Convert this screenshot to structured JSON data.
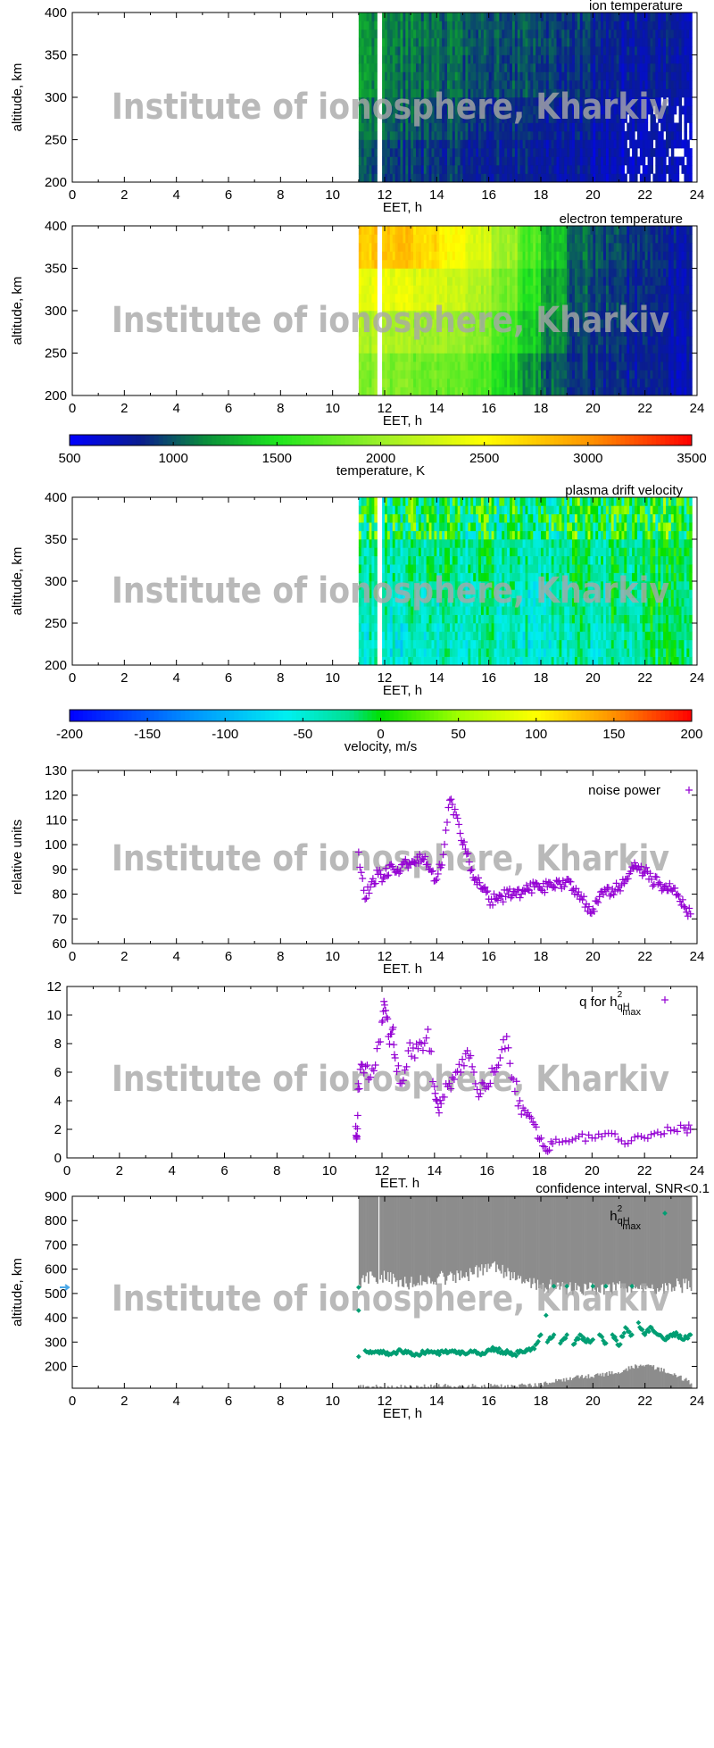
{
  "watermark": "Institute of ionosphere, Kharkiv",
  "chart_data": [
    {
      "type": "heatmap",
      "title": "ion temperature",
      "xlabel": "EET, h",
      "ylabel": "altitude, km",
      "xlim": [
        0,
        24
      ],
      "ylim": [
        200,
        400
      ],
      "xticks": [
        "0",
        "2",
        "4",
        "6",
        "8",
        "10",
        "12",
        "14",
        "16",
        "18",
        "20",
        "22",
        "24"
      ],
      "yticks": [
        "200",
        "250",
        "300",
        "350",
        "400"
      ],
      "colorbar": "temperature",
      "hours": [
        11,
        12,
        13,
        14,
        15,
        16,
        17,
        18,
        19,
        20,
        21,
        22,
        23
      ],
      "altitude_bands": [
        "200-250",
        "250-300",
        "300-350",
        "350-400"
      ],
      "values": [
        [
          950,
          920,
          900,
          880,
          860,
          850,
          820,
          800,
          760,
          720,
          700,
          700,
          700
        ],
        [
          1050,
          1000,
          980,
          950,
          920,
          900,
          880,
          850,
          800,
          760,
          730,
          720,
          720
        ],
        [
          1150,
          1080,
          1050,
          1030,
          1000,
          980,
          950,
          930,
          880,
          820,
          780,
          760,
          750
        ],
        [
          1150,
          1100,
          1080,
          1050,
          1030,
          1000,
          980,
          960,
          900,
          850,
          800,
          780,
          760
        ]
      ]
    },
    {
      "type": "heatmap",
      "title": "electron temperature",
      "xlabel": "EET, h",
      "ylabel": "altitude, km",
      "xlim": [
        0,
        24
      ],
      "ylim": [
        200,
        400
      ],
      "xticks": [
        "0",
        "2",
        "4",
        "6",
        "8",
        "10",
        "12",
        "14",
        "16",
        "18",
        "20",
        "22",
        "24"
      ],
      "yticks": [
        "200",
        "250",
        "300",
        "350",
        "400"
      ],
      "colorbar": "temperature",
      "hours": [
        11,
        12,
        13,
        14,
        15,
        16,
        17,
        18,
        19,
        20,
        21,
        22,
        23
      ],
      "altitude_bands": [
        "200-250",
        "250-300",
        "300-350",
        "350-400"
      ],
      "values": [
        [
          1900,
          1900,
          1850,
          1800,
          1700,
          1450,
          1200,
          1000,
          900,
          850,
          800,
          800,
          750
        ],
        [
          2100,
          2100,
          2050,
          2000,
          1900,
          1650,
          1400,
          1150,
          950,
          880,
          830,
          800,
          780
        ],
        [
          2400,
          2400,
          2350,
          2250,
          2100,
          1850,
          1550,
          1250,
          1000,
          920,
          850,
          820,
          800
        ],
        [
          2750,
          2800,
          2700,
          2500,
          2300,
          2000,
          1700,
          1350,
          1050,
          950,
          880,
          850,
          820
        ]
      ]
    },
    {
      "type": "colorbar",
      "id": "temperature",
      "label": "temperature, K",
      "range": [
        500,
        3500
      ],
      "ticks": [
        "500",
        "1000",
        "1500",
        "2000",
        "2500",
        "3000",
        "3500"
      ],
      "stops": [
        [
          500,
          "#0000ff"
        ],
        [
          850,
          "#0a1e8c"
        ],
        [
          1150,
          "#0a8c3c"
        ],
        [
          1500,
          "#1ee61e"
        ],
        [
          2000,
          "#9cf028"
        ],
        [
          2500,
          "#ffff00"
        ],
        [
          3000,
          "#ff9600"
        ],
        [
          3500,
          "#ff0000"
        ]
      ]
    },
    {
      "type": "heatmap",
      "title": "plasma drift velocity",
      "xlabel": "EET, h",
      "ylabel": "altitude, km",
      "xlim": [
        0,
        24
      ],
      "ylim": [
        200,
        400
      ],
      "xticks": [
        "0",
        "2",
        "4",
        "6",
        "8",
        "10",
        "12",
        "14",
        "16",
        "18",
        "20",
        "22",
        "24"
      ],
      "yticks": [
        "200",
        "250",
        "300",
        "350",
        "400"
      ],
      "colorbar": "velocity",
      "hours": [
        11,
        12,
        13,
        14,
        15,
        16,
        17,
        18,
        19,
        20,
        21,
        22,
        23
      ],
      "altitude_bands": [
        "200-250",
        "250-300",
        "300-350",
        "350-400"
      ],
      "values": [
        [
          -40,
          -50,
          -50,
          -45,
          -40,
          -40,
          -45,
          -40,
          -40,
          -35,
          -30,
          -20,
          -30
        ],
        [
          -30,
          -40,
          -40,
          -35,
          -35,
          -35,
          -40,
          -35,
          -30,
          -30,
          -25,
          -20,
          -25
        ],
        [
          -20,
          -30,
          -30,
          -25,
          -25,
          -30,
          -30,
          -25,
          -20,
          -25,
          -20,
          -15,
          -20
        ],
        [
          0,
          -10,
          -10,
          -5,
          -10,
          -10,
          -15,
          -10,
          -5,
          -10,
          -5,
          0,
          -10
        ]
      ]
    },
    {
      "type": "colorbar",
      "id": "velocity",
      "label": "velocity, m/s",
      "range": [
        -200,
        200
      ],
      "ticks": [
        "-200",
        "-150",
        "-100",
        "-50",
        "0",
        "50",
        "100",
        "150",
        "200"
      ],
      "stops": [
        [
          -200,
          "#0000ff"
        ],
        [
          -120,
          "#0096ff"
        ],
        [
          -60,
          "#00f0f0"
        ],
        [
          -20,
          "#00e090"
        ],
        [
          0,
          "#00e000"
        ],
        [
          50,
          "#a0ff00"
        ],
        [
          100,
          "#ffff00"
        ],
        [
          150,
          "#ff9000"
        ],
        [
          200,
          "#ff0000"
        ]
      ]
    },
    {
      "type": "scatter",
      "legend": "noise power",
      "color": "#9400d3",
      "xlabel": "EET. h",
      "ylabel": "relative units",
      "xlim": [
        0,
        24
      ],
      "ylim": [
        60,
        130
      ],
      "xticks": [
        "0",
        "2",
        "4",
        "6",
        "8",
        "10",
        "12",
        "14",
        "16",
        "18",
        "20",
        "22",
        "24"
      ],
      "yticks": [
        "60",
        "70",
        "80",
        "90",
        "100",
        "110",
        "120",
        "130"
      ],
      "x": [
        11,
        11.25,
        11.5,
        11.75,
        12,
        12.25,
        12.5,
        12.75,
        13,
        13.25,
        13.5,
        13.75,
        14,
        14.25,
        14.5,
        14.75,
        15,
        15.25,
        15.5,
        15.75,
        16,
        16.25,
        16.5,
        16.75,
        17,
        17.25,
        17.5,
        17.75,
        18,
        18.25,
        18.5,
        18.75,
        19,
        19.25,
        19.5,
        19.75,
        20,
        20.25,
        20.5,
        20.75,
        21,
        21.25,
        21.5,
        21.75,
        22,
        22.25,
        22.5,
        22.75,
        23,
        23.25,
        23.5,
        23.75
      ],
      "y": [
        97,
        78,
        85,
        88,
        87,
        92,
        90,
        93,
        92,
        95,
        94,
        90,
        86,
        96,
        118,
        112,
        100,
        93,
        86,
        82,
        78,
        78,
        79,
        80,
        81,
        80,
        82,
        83,
        82,
        83,
        83,
        84,
        86,
        82,
        78,
        76,
        74,
        79,
        81,
        82,
        83,
        86,
        91,
        91,
        89,
        86,
        84,
        83,
        82,
        80,
        75,
        72
      ]
    },
    {
      "type": "scatter",
      "legend": {
        "main": "q for h",
        "sub": "qH",
        "sup": "2",
        "sub2": "max"
      },
      "color": "#9400d3",
      "xlabel": "EET. h",
      "ylabel": "",
      "xlim": [
        0,
        24
      ],
      "ylim": [
        0,
        12
      ],
      "xticks": [
        "0",
        "2",
        "4",
        "6",
        "8",
        "10",
        "12",
        "14",
        "16",
        "18",
        "20",
        "22",
        "24"
      ],
      "yticks": [
        "0",
        "2",
        "4",
        "6",
        "8",
        "10",
        "12"
      ],
      "x": [
        11,
        11.05,
        11.1,
        11.25,
        11.5,
        11.75,
        12,
        12.1,
        12.25,
        12.4,
        12.5,
        12.75,
        13,
        13.25,
        13.5,
        13.75,
        14,
        14.1,
        14.25,
        14.5,
        14.75,
        15,
        15.25,
        15.5,
        15.75,
        16,
        16.25,
        16.5,
        16.75,
        17,
        17.25,
        17.5,
        17.75,
        18,
        18.25,
        18.5,
        19,
        19.5,
        20,
        20.5,
        21,
        21.5,
        22,
        22.5,
        23,
        23.5,
        23.75
      ],
      "y": [
        2.2,
        1.5,
        5.2,
        6.5,
        5.5,
        6.5,
        9.5,
        10.7,
        8.5,
        9,
        7,
        5.2,
        7.5,
        7,
        8,
        9,
        5,
        4,
        3.8,
        5,
        5.5,
        6,
        7.5,
        6,
        4.5,
        5,
        6,
        7,
        8.5,
        5.5,
        4,
        3,
        2.5,
        1.3,
        0.5,
        1,
        1.2,
        1.5,
        1.4,
        1.7,
        1.3,
        1.2,
        1.4,
        1.8,
        1.9,
        2.1,
        2.0
      ]
    },
    {
      "type": "scatter",
      "title": "confidence interval, SNR<0.1",
      "legend": {
        "main": "h",
        "sub": "qH",
        "sup": "2",
        "sub2": "max"
      },
      "color": "#009e73",
      "band_color": "#8c8c8c",
      "xlabel": "EET, h",
      "ylabel": "altitude, km",
      "xlim": [
        0,
        24
      ],
      "ylim": [
        110,
        900
      ],
      "xticks": [
        "0",
        "2",
        "4",
        "6",
        "8",
        "10",
        "12",
        "14",
        "16",
        "18",
        "20",
        "22",
        "24"
      ],
      "yticks": [
        "200",
        "300",
        "400",
        "500",
        "600",
        "700",
        "800",
        "900"
      ],
      "confidence_hours": [
        11,
        12,
        13,
        14,
        15,
        16,
        17,
        18,
        19,
        20,
        21,
        22,
        23,
        23.8
      ],
      "confidence_upper_lower_edge": [
        540,
        560,
        530,
        550,
        560,
        600,
        560,
        520,
        510,
        510,
        510,
        510,
        520,
        520
      ],
      "confidence_lower_upper_edge": [
        115,
        115,
        115,
        118,
        118,
        118,
        120,
        125,
        150,
        160,
        180,
        210,
        170,
        130
      ],
      "x": [
        11,
        11,
        11,
        11.25,
        11.5,
        11.75,
        12,
        12.25,
        12.5,
        12.75,
        13,
        13.25,
        13.5,
        13.75,
        14,
        14.25,
        14.5,
        14.75,
        15,
        15.25,
        15.5,
        15.75,
        16,
        16.25,
        16.5,
        16.75,
        17,
        17.25,
        17.5,
        17.75,
        18,
        18.2,
        18.25,
        18.5,
        18.5,
        18.75,
        19,
        19,
        19.25,
        19.5,
        19.75,
        20,
        20,
        20.25,
        20.5,
        20.5,
        20.75,
        21,
        21.25,
        21.5,
        21.5,
        21.75,
        22,
        22.25,
        22.5,
        22.75,
        23,
        23.25,
        23.5,
        23.75
      ],
      "y": [
        240,
        430,
        525,
        265,
        255,
        262,
        258,
        250,
        262,
        255,
        258,
        250,
        255,
        260,
        252,
        258,
        262,
        255,
        260,
        258,
        262,
        255,
        268,
        272,
        262,
        258,
        250,
        262,
        268,
        272,
        330,
        410,
        300,
        330,
        530,
        295,
        330,
        530,
        290,
        330,
        300,
        310,
        530,
        330,
        295,
        530,
        330,
        285,
        360,
        330,
        530,
        380,
        330,
        360,
        330,
        310,
        330,
        330,
        310,
        330
      ]
    }
  ]
}
